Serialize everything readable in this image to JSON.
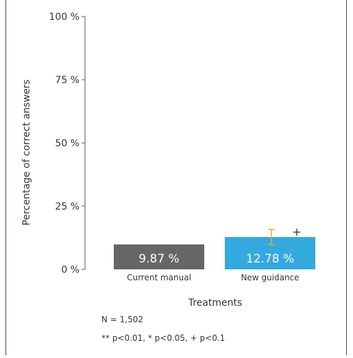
{
  "chart_data": {
    "type": "bar",
    "title": "",
    "xlabel": "Treatments",
    "ylabel": "Percentage of correct answers",
    "ylim": [
      0,
      100
    ],
    "grid": false,
    "y_ticks": [
      "0 %",
      "25 %",
      "50 %",
      "75 %",
      "100 %"
    ],
    "y_tick_values": [
      0,
      25,
      50,
      75,
      100
    ],
    "categories": [
      "Current manual",
      "New guidance"
    ],
    "values": [
      9.87,
      12.78
    ],
    "value_labels": [
      "9.87 %",
      "12.78 %"
    ],
    "bar_colors": [
      "#666669",
      "#33a9e0"
    ],
    "error_bar": {
      "category": "New guidance",
      "low": 9.8,
      "high": 15.8,
      "color": "#f5a623"
    },
    "significance_marker": {
      "category": "New guidance",
      "text": "+"
    },
    "notes": [
      "N = 1,502",
      "** p<0.01, * p<0.05, + p<0.1"
    ]
  }
}
